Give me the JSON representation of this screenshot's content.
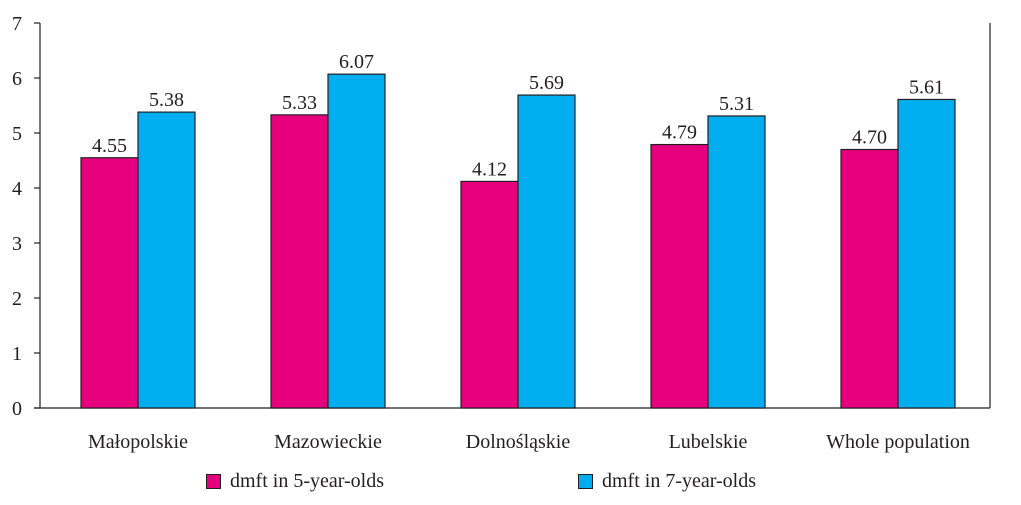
{
  "chart_data": {
    "type": "bar",
    "categories": [
      "Małopolskie",
      "Mazowieckie",
      "Dolnośląskie",
      "Lubelskie",
      "Whole population"
    ],
    "series": [
      {
        "name": "dmft in 5-year-olds",
        "values": [
          4.55,
          5.33,
          4.12,
          4.79,
          4.7
        ],
        "labels": [
          "4.55",
          "5.33",
          "4.12",
          "4.79",
          "4.70"
        ],
        "color": "#e6007e"
      },
      {
        "name": "dmft in 7-year-olds",
        "values": [
          5.38,
          6.07,
          5.69,
          5.31,
          5.61
        ],
        "labels": [
          "5.38",
          "6.07",
          "5.69",
          "5.31",
          "5.61"
        ],
        "color": "#00aeef"
      }
    ],
    "yticks": [
      "0",
      "1",
      "2",
      "3",
      "4",
      "5",
      "6",
      "7"
    ],
    "ylim": [
      0,
      7
    ],
    "grid": false,
    "legend_position": "bottom"
  }
}
